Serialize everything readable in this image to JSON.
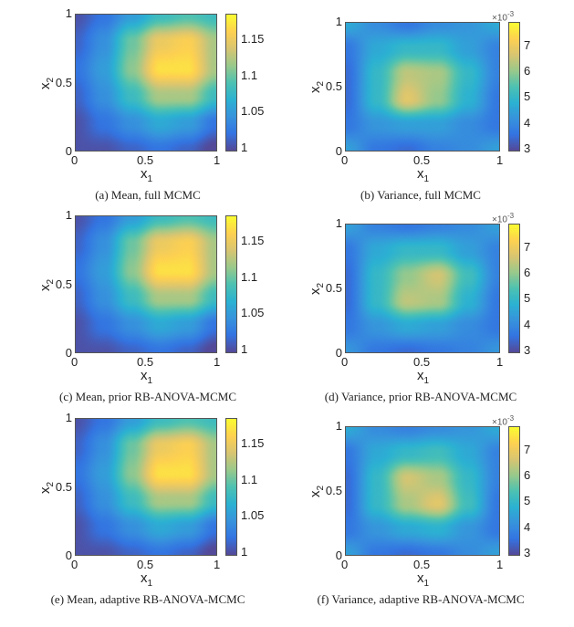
{
  "colormap": "parula",
  "chart_data": [
    {
      "type": "heatmap",
      "caption": "(a) Mean, full MCMC",
      "xlabel": "x",
      "xlabel_sub": "1",
      "ylabel": "x",
      "ylabel_sub": "2",
      "xlim": [
        0,
        1
      ],
      "ylim": [
        0,
        1
      ],
      "xticks": [
        "0",
        "0.5",
        "1"
      ],
      "yticks": [
        "0",
        "0.5",
        "1"
      ],
      "clim": [
        0.995,
        1.185
      ],
      "cticks": [
        "1",
        "1.05",
        "1.1",
        "1.15"
      ],
      "cticks_values": [
        1,
        1.05,
        1.1,
        1.15
      ],
      "exponent": "",
      "grid_x": [
        0,
        0.2,
        0.4,
        0.6,
        0.8,
        1
      ],
      "grid_y": [
        1,
        0.8,
        0.6,
        0.4,
        0.2,
        0
      ],
      "values": [
        [
          1.0,
          1.02,
          1.05,
          1.08,
          1.09,
          1.08
        ],
        [
          1.01,
          1.04,
          1.1,
          1.15,
          1.16,
          1.12
        ],
        [
          1.02,
          1.05,
          1.11,
          1.17,
          1.17,
          1.12
        ],
        [
          1.01,
          1.04,
          1.08,
          1.12,
          1.12,
          1.08
        ],
        [
          1.0,
          1.02,
          1.04,
          1.06,
          1.05,
          1.02
        ],
        [
          1.0,
          1.0,
          1.01,
          1.02,
          1.01,
          0.99
        ]
      ]
    },
    {
      "type": "heatmap",
      "caption": "(b) Variance, full MCMC",
      "xlabel": "x",
      "xlabel_sub": "1",
      "ylabel": "x",
      "ylabel_sub": "2",
      "xlim": [
        0,
        1
      ],
      "ylim": [
        0,
        1
      ],
      "xticks": [
        "0",
        "0.5",
        "1"
      ],
      "yticks": [
        "0",
        "0.5",
        "1"
      ],
      "clim": [
        2.9,
        7.9
      ],
      "cticks": [
        "3",
        "4",
        "5",
        "6",
        "7"
      ],
      "cticks_values": [
        3,
        4,
        5,
        6,
        7
      ],
      "exponent": "×10",
      "exponent_power": "-3",
      "grid_x": [
        0,
        0.2,
        0.4,
        0.6,
        0.8,
        1
      ],
      "grid_y": [
        1,
        0.8,
        0.6,
        0.4,
        0.2,
        0
      ],
      "values": [
        [
          4.6,
          4.0,
          3.6,
          4.0,
          4.2,
          4.6
        ],
        [
          3.6,
          4.6,
          5.0,
          5.0,
          4.4,
          3.8
        ],
        [
          3.4,
          5.0,
          6.4,
          6.2,
          5.0,
          3.8
        ],
        [
          3.4,
          5.0,
          6.8,
          6.0,
          4.8,
          3.6
        ],
        [
          3.6,
          4.2,
          4.4,
          4.4,
          4.0,
          3.6
        ],
        [
          4.4,
          3.6,
          3.4,
          3.8,
          4.0,
          4.4
        ]
      ]
    },
    {
      "type": "heatmap",
      "caption": "(c) Mean, prior RB-ANOVA-MCMC",
      "xlabel": "x",
      "xlabel_sub": "1",
      "ylabel": "x",
      "ylabel_sub": "2",
      "xlim": [
        0,
        1
      ],
      "ylim": [
        0,
        1
      ],
      "xticks": [
        "0",
        "0.5",
        "1"
      ],
      "yticks": [
        "0",
        "0.5",
        "1"
      ],
      "clim": [
        0.995,
        1.185
      ],
      "cticks": [
        "1",
        "1.05",
        "1.1",
        "1.15"
      ],
      "cticks_values": [
        1,
        1.05,
        1.1,
        1.15
      ],
      "exponent": "",
      "grid_x": [
        0,
        0.2,
        0.4,
        0.6,
        0.8,
        1
      ],
      "grid_y": [
        1,
        0.8,
        0.6,
        0.4,
        0.2,
        0
      ],
      "values": [
        [
          1.0,
          1.02,
          1.05,
          1.08,
          1.09,
          1.08
        ],
        [
          1.01,
          1.04,
          1.1,
          1.15,
          1.16,
          1.12
        ],
        [
          1.02,
          1.05,
          1.11,
          1.17,
          1.17,
          1.12
        ],
        [
          1.01,
          1.04,
          1.08,
          1.12,
          1.12,
          1.08
        ],
        [
          1.0,
          1.02,
          1.04,
          1.06,
          1.05,
          1.02
        ],
        [
          1.0,
          1.0,
          1.01,
          1.02,
          1.01,
          0.99
        ]
      ]
    },
    {
      "type": "heatmap",
      "caption": "(d) Variance, prior RB-ANOVA-MCMC",
      "xlabel": "x",
      "xlabel_sub": "1",
      "ylabel": "x",
      "ylabel_sub": "2",
      "xlim": [
        0,
        1
      ],
      "ylim": [
        0,
        1
      ],
      "xticks": [
        "0",
        "0.5",
        "1"
      ],
      "yticks": [
        "0",
        "0.5",
        "1"
      ],
      "clim": [
        2.9,
        7.9
      ],
      "cticks": [
        "3",
        "4",
        "5",
        "6",
        "7"
      ],
      "cticks_values": [
        3,
        4,
        5,
        6,
        7
      ],
      "exponent": "×10",
      "exponent_power": "-3",
      "grid_x": [
        0,
        0.2,
        0.4,
        0.6,
        0.8,
        1
      ],
      "grid_y": [
        1,
        0.8,
        0.6,
        0.4,
        0.2,
        0
      ],
      "values": [
        [
          4.4,
          3.8,
          3.6,
          3.8,
          4.0,
          4.4
        ],
        [
          3.6,
          4.6,
          5.0,
          5.0,
          4.4,
          3.8
        ],
        [
          3.4,
          5.0,
          6.0,
          6.6,
          5.2,
          3.8
        ],
        [
          3.4,
          5.0,
          6.4,
          6.2,
          4.8,
          3.6
        ],
        [
          3.6,
          4.2,
          4.6,
          4.4,
          4.0,
          3.6
        ],
        [
          4.2,
          3.6,
          3.4,
          3.6,
          3.8,
          4.2
        ]
      ]
    },
    {
      "type": "heatmap",
      "caption": "(e) Mean, adaptive RB-ANOVA-MCMC",
      "xlabel": "x",
      "xlabel_sub": "1",
      "ylabel": "x",
      "ylabel_sub": "2",
      "xlim": [
        0,
        1
      ],
      "ylim": [
        0,
        1
      ],
      "xticks": [
        "0",
        "0.5",
        "1"
      ],
      "yticks": [
        "0",
        "0.5",
        "1"
      ],
      "clim": [
        0.995,
        1.185
      ],
      "cticks": [
        "1",
        "1.05",
        "1.1",
        "1.15"
      ],
      "cticks_values": [
        1,
        1.05,
        1.1,
        1.15
      ],
      "exponent": "",
      "grid_x": [
        0,
        0.2,
        0.4,
        0.6,
        0.8,
        1
      ],
      "grid_y": [
        1,
        0.8,
        0.6,
        0.4,
        0.2,
        0
      ],
      "values": [
        [
          1.0,
          1.02,
          1.05,
          1.08,
          1.09,
          1.08
        ],
        [
          1.01,
          1.04,
          1.1,
          1.15,
          1.16,
          1.12
        ],
        [
          1.02,
          1.05,
          1.11,
          1.17,
          1.17,
          1.12
        ],
        [
          1.01,
          1.04,
          1.08,
          1.12,
          1.12,
          1.08
        ],
        [
          1.0,
          1.02,
          1.04,
          1.06,
          1.05,
          1.02
        ],
        [
          1.0,
          1.0,
          1.01,
          1.02,
          1.01,
          0.99
        ]
      ]
    },
    {
      "type": "heatmap",
      "caption": "(f) Variance, adaptive RB-ANOVA-MCMC",
      "xlabel": "x",
      "xlabel_sub": "1",
      "ylabel": "x",
      "ylabel_sub": "2",
      "xlim": [
        0,
        1
      ],
      "ylim": [
        0,
        1
      ],
      "xticks": [
        "0",
        "0.5",
        "1"
      ],
      "yticks": [
        "0",
        "0.5",
        "1"
      ],
      "clim": [
        2.9,
        7.9
      ],
      "cticks": [
        "3",
        "4",
        "5",
        "6",
        "7"
      ],
      "cticks_values": [
        3,
        4,
        5,
        6,
        7
      ],
      "exponent": "×10",
      "exponent_power": "-3",
      "grid_x": [
        0,
        0.2,
        0.4,
        0.6,
        0.8,
        1
      ],
      "grid_y": [
        1,
        0.8,
        0.6,
        0.4,
        0.2,
        0
      ],
      "values": [
        [
          4.6,
          4.0,
          3.8,
          4.0,
          4.2,
          4.6
        ],
        [
          3.6,
          4.6,
          5.0,
          5.2,
          4.6,
          3.8
        ],
        [
          3.4,
          5.0,
          6.6,
          6.2,
          5.0,
          3.8
        ],
        [
          3.4,
          5.0,
          6.2,
          6.8,
          5.2,
          3.6
        ],
        [
          3.6,
          4.2,
          4.6,
          4.8,
          4.2,
          3.6
        ],
        [
          4.4,
          3.6,
          3.4,
          3.6,
          4.0,
          4.4
        ]
      ]
    }
  ]
}
